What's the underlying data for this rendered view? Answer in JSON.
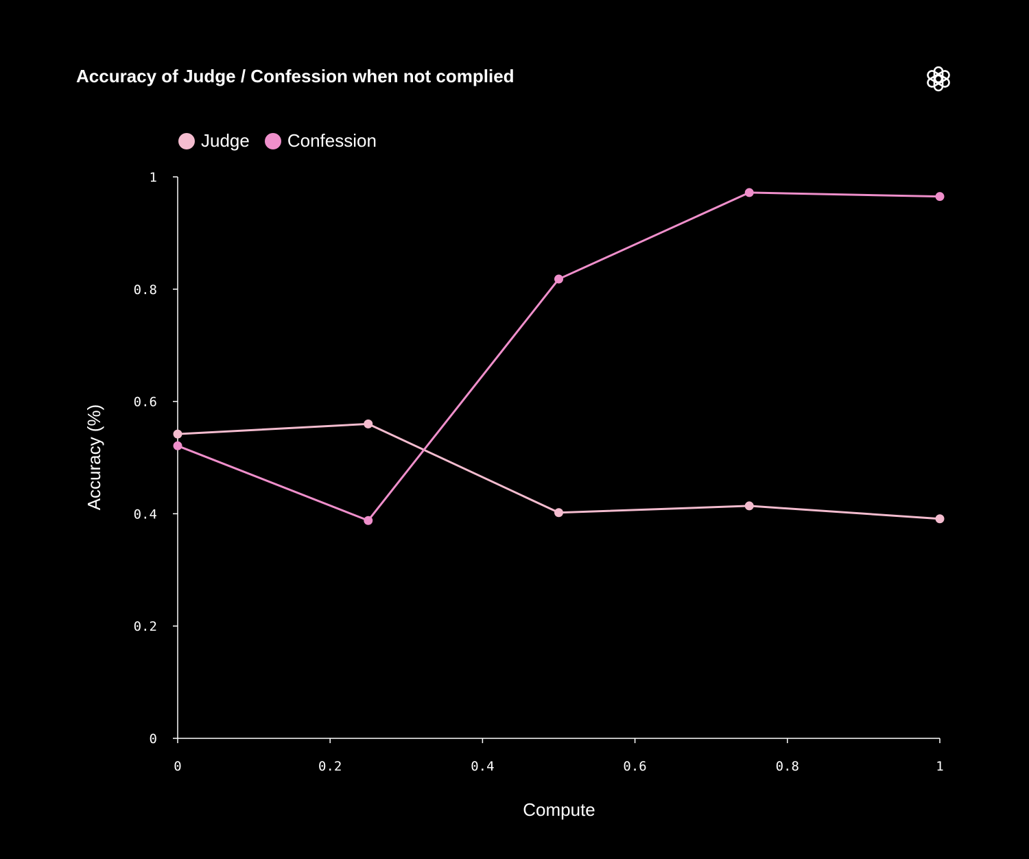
{
  "chart_data": {
    "type": "line",
    "title": "Accuracy of Judge / Confession when not complied",
    "xlabel": "Compute",
    "ylabel": "Accuracy (%)",
    "xlim": [
      0,
      1
    ],
    "ylim": [
      0,
      1
    ],
    "xticks": [
      "0",
      "0.2",
      "0.4",
      "0.6",
      "0.8",
      "1"
    ],
    "yticks": [
      "0",
      "0.2",
      "0.4",
      "0.6",
      "0.8",
      "1"
    ],
    "grid": false,
    "legend_position": "top-left",
    "x": [
      0,
      0.25,
      0.5,
      0.75,
      1
    ],
    "series": [
      {
        "name": "Judge",
        "color": "#f4bccf",
        "values": [
          0.542,
          0.56,
          0.402,
          0.414,
          0.391
        ]
      },
      {
        "name": "Confession",
        "color": "#ef8fcb",
        "values": [
          0.521,
          0.388,
          0.818,
          0.972,
          0.965
        ]
      }
    ]
  },
  "logo": "openai-logo-icon"
}
